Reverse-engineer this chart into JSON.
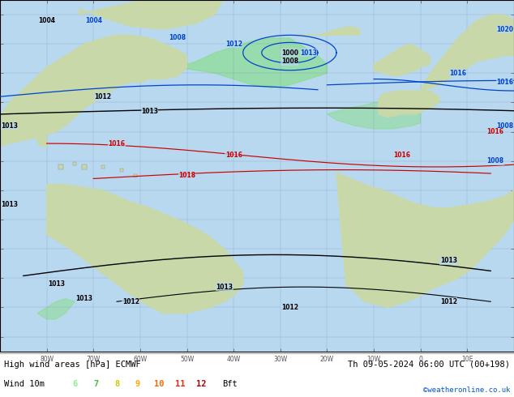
{
  "title_left": "High wind areas [hPa] ECMWF",
  "title_right": "Th 09-05-2024 06:00 UTC (00+198)",
  "legend_label": "Wind 10m",
  "legend_values": [
    "6",
    "7",
    "8",
    "9",
    "10",
    "11",
    "12"
  ],
  "legend_colors": [
    "#90ee90",
    "#44bb44",
    "#cccc00",
    "#ffaa00",
    "#ff6600",
    "#ff2200",
    "#aa0000"
  ],
  "legend_suffix": "Bft",
  "copyright": "©weatheronline.co.uk",
  "map_bg": "#b8d8f0",
  "land_color": "#c8d8a8",
  "bottom_bar_color": "#ffffff",
  "xticks": [
    -80,
    -70,
    -60,
    -50,
    -40,
    -30,
    -20,
    -10,
    0,
    10
  ],
  "xtick_labels": [
    "80W",
    "70W",
    "60W",
    "50W",
    "40W",
    "30W",
    "20W",
    "10W",
    "0",
    "10E"
  ],
  "yticks": [
    -40,
    -30,
    -20,
    -10,
    0,
    10,
    20,
    30,
    40,
    50,
    60,
    70
  ],
  "xlim": [
    -90,
    20
  ],
  "ylim": [
    -45,
    75
  ]
}
